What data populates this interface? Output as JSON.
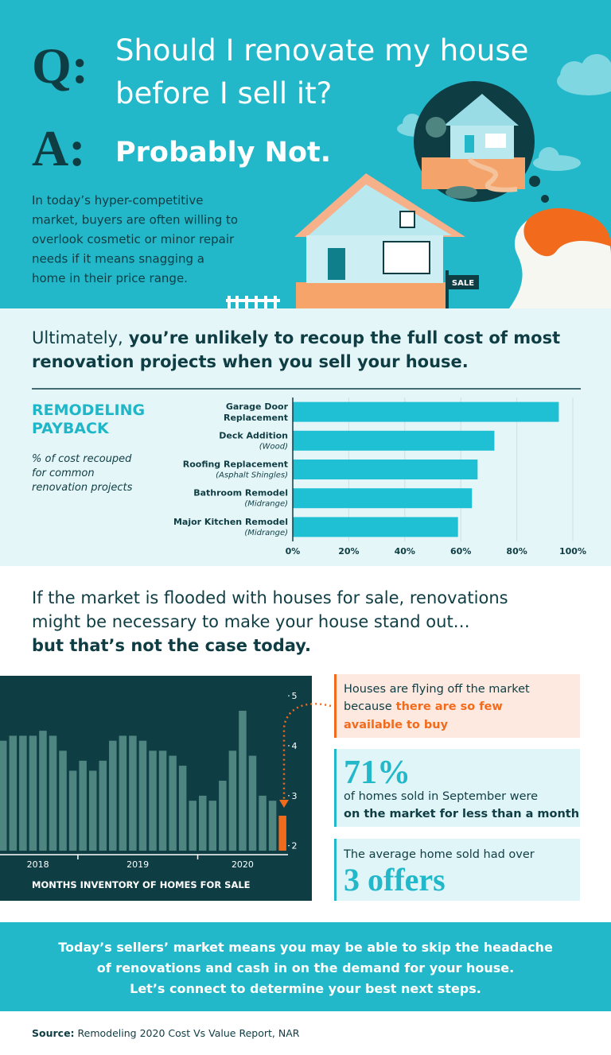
{
  "header": {
    "question_mark": "Q:",
    "question": [
      "Should I renovate my house",
      "before I sell it?"
    ],
    "answer_mark": "A:",
    "answer": "Probably Not.",
    "intro": [
      "In today’s hyper-competitive",
      "market, buyers are often willing to",
      "overlook cosmetic or minor repair",
      "needs if it means snagging a",
      "home in their price range."
    ],
    "sign": "SALE"
  },
  "recoup": {
    "lead": "Ultimately,",
    "emphasis": [
      "you’re unlikely to recoup the full cost of most",
      "renovation projects when you sell your house."
    ]
  },
  "payback": {
    "title": [
      "REMODELING",
      "PAYBACK"
    ],
    "note": [
      "% of cost recouped",
      "for common",
      "renovation projects"
    ]
  },
  "chart_data": [
    {
      "type": "bar",
      "orientation": "horizontal",
      "categories": [
        [
          "Garage Door",
          "Replacement"
        ],
        [
          "Deck Addition"
        ],
        [
          "Roofing Replacement"
        ],
        [
          "Bathroom Remodel"
        ],
        [
          "Major Kitchen Remodel"
        ]
      ],
      "sublabels": [
        null,
        "(Wood)",
        "(Asphalt Shingles)",
        "(Midrange)",
        "(Midrange)"
      ],
      "values": [
        95,
        72,
        66,
        64,
        59
      ],
      "color": "#1fc0d4",
      "xlim": [
        0,
        100
      ],
      "xticks": [
        {
          "value": 0,
          "label": "0%"
        },
        {
          "value": 20,
          "label": "20%"
        },
        {
          "value": 40,
          "label": "40%"
        },
        {
          "value": 60,
          "label": "60%"
        },
        {
          "value": 80,
          "label": "80%"
        },
        {
          "value": 100,
          "label": "100%"
        }
      ],
      "grid": true
    },
    {
      "type": "bar",
      "title": "MONTHS INVENTORY OF HOMES FOR SALE",
      "x": [
        "2018",
        "2018",
        "2018",
        "2018",
        "2018",
        "2018",
        "2018",
        "2018",
        "2019",
        "2019",
        "2019",
        "2019",
        "2019",
        "2019",
        "2019",
        "2019",
        "2019",
        "2019",
        "2019",
        "2019",
        "2020",
        "2020",
        "2020",
        "2020",
        "2020",
        "2020",
        "2020",
        "2020",
        "2020"
      ],
      "values": [
        4.1,
        4.2,
        4.2,
        4.2,
        4.3,
        4.2,
        3.9,
        3.5,
        3.7,
        3.5,
        3.7,
        4.1,
        4.2,
        4.2,
        4.1,
        3.9,
        3.9,
        3.8,
        3.6,
        2.9,
        3.0,
        2.9,
        3.3,
        3.9,
        4.7,
        3.8,
        3.0,
        2.9,
        2.6
      ],
      "colors": [
        "#4f8581",
        "#4f8581",
        "#4f8581",
        "#4f8581",
        "#4f8581",
        "#4f8581",
        "#4f8581",
        "#4f8581",
        "#4f8581",
        "#4f8581",
        "#4f8581",
        "#4f8581",
        "#4f8581",
        "#4f8581",
        "#4f8581",
        "#4f8581",
        "#4f8581",
        "#4f8581",
        "#4f8581",
        "#4f8581",
        "#4f8581",
        "#4f8581",
        "#4f8581",
        "#4f8581",
        "#4f8581",
        "#4f8581",
        "#4f8581",
        "#4f8581",
        "#f26b1d"
      ],
      "ylim": [
        1.9,
        5.4
      ],
      "yticks": [
        2,
        3,
        4,
        5
      ],
      "y_axis_side": "right"
    }
  ],
  "market": {
    "lines": [
      "If the market is flooded with houses for sale, renovations",
      "might be necessary to make your house stand out…"
    ],
    "emphasis": "but that’s not the case today."
  },
  "facts": [
    {
      "text": "Houses are flying off the market",
      "lead": "because",
      "highlight": [
        "there are so few",
        "available to buy"
      ]
    },
    {
      "stat": "71%",
      "text": "of homes sold in September were",
      "emphasis": "on the market for less than a month"
    },
    {
      "text": "The average home sold had over",
      "stat": "3 offers"
    }
  ],
  "closing": [
    "Today’s sellers’ market means you may be able to skip the headache",
    "of renovations and cash in on the demand for your house.",
    "Let’s connect to determine your best next steps."
  ],
  "source": {
    "label": "Source:",
    "text": "Remodeling 2020 Cost Vs Value Report, NAR"
  }
}
